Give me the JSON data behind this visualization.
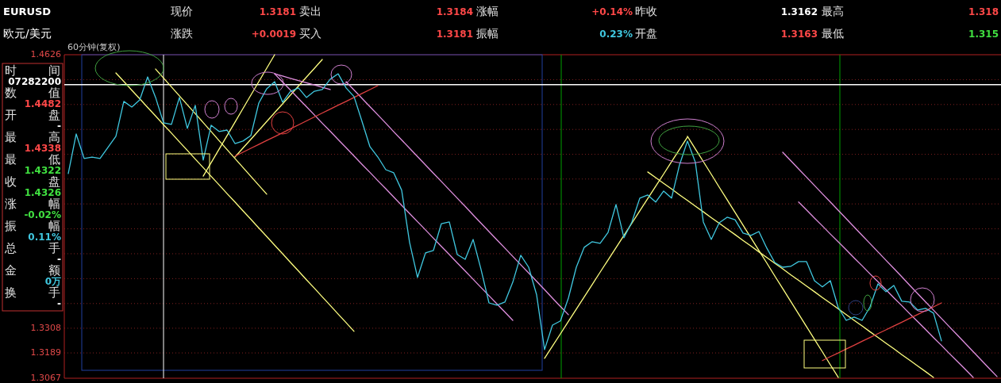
{
  "chart_data": [
    {
      "type": "line",
      "title": "60分钟(复权)",
      "ylim": [
        1.3067,
        1.4626
      ],
      "tick_labels": "y",
      "grid": "y",
      "yticks": [
        1.3067,
        1.3189,
        1.3308,
        {
          "value": 1.3427,
          "label": null
        },
        {
          "value": 1.3547,
          "label": null
        },
        {
          "value": 1.3667,
          "label": null
        },
        {
          "value": 1.3787,
          "label": null
        },
        {
          "value": 1.3907,
          "label": null
        },
        {
          "value": 1.4027,
          "label": null
        },
        {
          "value": 1.4146,
          "label": null
        },
        {
          "value": 1.4266,
          "label": null
        },
        {
          "value": 1.4386,
          "label": null
        },
        {
          "value": 1.4506,
          "label": null
        },
        1.4626
      ],
      "categories": [
        null,
        null,
        null,
        null,
        null,
        null,
        null,
        null,
        null,
        null,
        null,
        null,
        null,
        null,
        null,
        null,
        null,
        null,
        null,
        null,
        null,
        null,
        null,
        null,
        null,
        null,
        null,
        null,
        null,
        null,
        null,
        null,
        null,
        null,
        null,
        null,
        null,
        null,
        null,
        null,
        null,
        null,
        null,
        null,
        null,
        null,
        null,
        null,
        null,
        null,
        null,
        null,
        null,
        null,
        null,
        null,
        null,
        null,
        null,
        null,
        null,
        null,
        null,
        null,
        null,
        null,
        null,
        null,
        null,
        null,
        null,
        null,
        null,
        null,
        null,
        null,
        null,
        null,
        null,
        null,
        null,
        null,
        null,
        null,
        null,
        null,
        null,
        null,
        null,
        null,
        null,
        null,
        null,
        null,
        null,
        null,
        null,
        null,
        null,
        null,
        null,
        null,
        null,
        null,
        null,
        null,
        null,
        null,
        null,
        null,
        null,
        null,
        null,
        null,
        null,
        null,
        null,
        null
      ],
      "series": [
        {
          "color": "#40c8e0",
          "values": [
            1.4053,
            1.4244,
            1.4126,
            1.4133,
            1.4126,
            1.4179,
            1.4233,
            1.4401,
            1.4374,
            1.4408,
            1.4519,
            1.442,
            1.4298,
            1.429,
            1.442,
            1.4271,
            1.4382,
            1.4118,
            1.4286,
            1.4256,
            1.4263,
            1.4198,
            1.421,
            1.4236,
            1.4393,
            1.4462,
            1.4496,
            1.4397,
            1.445,
            1.4466,
            1.442,
            1.445,
            1.4458,
            1.4508,
            1.4534,
            1.4466,
            1.4424,
            1.4305,
            1.4183,
            1.4133,
            1.4072,
            1.4057,
            1.3973,
            1.3721,
            1.3553,
            1.3671,
            1.3683,
            1.3812,
            1.382,
            1.3663,
            1.364,
            1.3736,
            1.3591,
            1.343,
            1.3419,
            1.3434,
            1.353,
            1.366,
            1.3602,
            1.3469,
            1.3205,
            1.3323,
            1.3343,
            1.3453,
            1.3602,
            1.3698,
            1.3725,
            1.3717,
            1.377,
            1.3904,
            1.3744,
            1.382,
            1.3935,
            1.395,
            1.3916,
            1.3969,
            1.3935,
            1.4095,
            1.421,
            1.4107,
            1.382,
            1.3736,
            1.3816,
            1.3843,
            1.3831,
            1.3767,
            1.3755,
            1.3774,
            1.3694,
            1.3625,
            1.3602,
            1.3606,
            1.3629,
            1.3629,
            1.3537,
            1.3507,
            1.3537,
            1.3407,
            1.3346,
            1.3362,
            1.3346,
            1.3411,
            1.3522,
            1.3484,
            1.3514,
            1.3438,
            1.3434,
            1.3396,
            1.3404,
            1.3381,
            1.3247,
            null,
            null,
            null,
            null,
            null,
            null,
            null
          ]
        },
        {
          "type": "line",
          "color": "#ffff80",
          "values": [
            null,
            null,
            null,
            null,
            null,
            null,
            1.4538,
            1.4497,
            1.4455,
            1.4414,
            1.4372,
            1.4331,
            1.4289,
            1.4248,
            1.4206,
            1.4165,
            1.4123,
            1.4082,
            1.404,
            1.3999,
            1.3957,
            1.3916,
            1.3874,
            1.3833,
            1.3791,
            1.375,
            1.3708,
            1.3667,
            1.3625,
            1.3584,
            1.3542,
            1.3501,
            1.3459,
            1.3418,
            1.3376,
            1.3335,
            1.3293,
            null,
            null,
            null,
            null,
            null,
            null,
            null,
            null,
            null,
            null,
            null,
            null,
            null,
            null,
            null,
            null,
            null,
            null,
            null,
            null,
            null,
            null,
            null,
            null,
            null,
            null,
            null,
            null,
            null,
            null,
            null,
            null,
            null,
            null,
            null,
            null,
            null,
            null,
            null,
            null,
            null,
            null,
            null,
            null,
            null,
            null,
            null,
            null,
            null,
            null,
            null,
            null,
            null,
            null,
            null,
            null,
            null,
            null,
            null,
            null,
            null,
            null,
            null,
            null,
            null,
            null,
            null,
            null,
            null,
            null,
            null,
            null,
            null,
            null,
            null,
            null,
            null,
            null,
            null,
            null,
            null
          ]
        },
        {
          "type": "line",
          "color": "#ffff80",
          "values": [
            null,
            null,
            null,
            null,
            null,
            null,
            null,
            null,
            null,
            null,
            null,
            1.4557,
            1.4514,
            1.4471,
            1.4428,
            1.4385,
            1.4342,
            1.4299,
            1.4256,
            1.4212,
            1.4169,
            1.4126,
            1.4083,
            1.404,
            1.3997,
            1.3954,
            null,
            null,
            null,
            null,
            null,
            null,
            null,
            null,
            null,
            null,
            null,
            null,
            null,
            null,
            null,
            null,
            null,
            null,
            null,
            null,
            null,
            null,
            null,
            null,
            null,
            null,
            null,
            null,
            null,
            null,
            null,
            null,
            null,
            null,
            null,
            null,
            null,
            null,
            null,
            null,
            null,
            null,
            null,
            null,
            null,
            null,
            null,
            null,
            null,
            null,
            null,
            null,
            null,
            null,
            null,
            null,
            null,
            null,
            null,
            null,
            null,
            null,
            null,
            null,
            null,
            null,
            null,
            null,
            null,
            null,
            null,
            null,
            null,
            null,
            null,
            null,
            null,
            null,
            null,
            null,
            null,
            null,
            null,
            null,
            null,
            null,
            null,
            null,
            null,
            null,
            null,
            null
          ]
        },
        {
          "type": "line",
          "color": "#ffff80",
          "values": [
            null,
            null,
            null,
            null,
            null,
            null,
            null,
            null,
            null,
            null,
            null,
            null,
            null,
            null,
            null,
            null,
            null,
            1.4041,
            1.4106,
            1.4171,
            1.4236,
            1.4301,
            1.4366,
            1.4431,
            1.4496,
            1.4561,
            1.4626,
            null,
            null,
            null,
            null,
            null,
            null,
            null,
            null,
            null,
            null,
            null,
            null,
            null,
            null,
            null,
            null,
            null,
            null,
            null,
            null,
            null,
            null,
            null,
            null,
            null,
            null,
            null,
            null,
            null,
            null,
            null,
            null,
            null,
            null,
            null,
            null,
            null,
            null,
            null,
            null,
            null,
            null,
            null,
            null,
            null,
            null,
            null,
            null,
            null,
            null,
            null,
            null,
            null,
            null,
            null,
            null,
            null,
            null,
            null,
            null,
            null,
            null,
            null,
            null,
            null,
            null,
            null,
            null,
            null,
            null,
            null,
            null,
            null,
            null,
            null,
            null,
            null,
            null,
            null,
            null,
            null,
            null,
            null,
            null,
            null,
            null,
            null,
            null,
            null,
            null,
            null
          ]
        },
        {
          "type": "line",
          "color": "#ffff80",
          "values": [
            null,
            null,
            null,
            null,
            null,
            null,
            null,
            null,
            null,
            null,
            null,
            null,
            null,
            null,
            null,
            null,
            null,
            null,
            null,
            null,
            null,
            1.4133,
            1.4176,
            1.4218,
            1.4261,
            1.4304,
            1.4347,
            1.4389,
            1.4432,
            1.4475,
            1.4518,
            1.456,
            1.4603,
            null,
            null,
            null,
            null,
            null,
            null,
            null,
            null,
            null,
            null,
            null,
            null,
            null,
            null,
            null,
            null,
            null,
            null,
            null,
            null,
            null,
            null,
            null,
            null,
            null,
            null,
            null,
            null,
            null,
            null,
            null,
            null,
            null,
            null,
            null,
            null,
            null,
            null,
            null,
            null,
            null,
            null,
            null,
            null,
            null,
            null,
            null,
            null,
            null,
            null,
            null,
            null,
            null,
            null,
            null,
            null,
            null,
            null,
            null,
            null,
            null,
            null,
            null,
            null,
            null,
            null,
            null,
            null,
            null,
            null,
            null,
            null,
            null,
            null,
            null,
            null,
            null,
            null,
            null,
            null,
            null,
            null,
            null,
            null,
            null
          ]
        },
        {
          "type": "line",
          "color": "#ffff80",
          "values": [
            null,
            null,
            null,
            null,
            null,
            null,
            null,
            null,
            null,
            null,
            null,
            null,
            null,
            null,
            null,
            null,
            null,
            null,
            null,
            null,
            null,
            null,
            null,
            null,
            null,
            null,
            null,
            null,
            null,
            null,
            null,
            null,
            null,
            null,
            null,
            null,
            null,
            null,
            null,
            null,
            null,
            null,
            null,
            null,
            null,
            null,
            null,
            null,
            null,
            null,
            null,
            null,
            null,
            null,
            null,
            null,
            null,
            null,
            null,
            null,
            1.3163,
            1.3222,
            1.3281,
            1.3341,
            1.34,
            1.3459,
            1.3518,
            1.3578,
            1.3637,
            1.3696,
            1.3755,
            1.3814,
            1.3874,
            1.3933,
            1.3992,
            1.4051,
            1.4111,
            1.417,
            1.4229,
            null,
            null,
            null,
            null,
            null,
            null,
            null,
            null,
            null,
            null,
            null,
            null,
            null,
            null,
            null,
            null,
            null,
            null,
            null,
            null,
            null,
            null,
            null,
            null,
            null,
            null,
            null,
            null,
            null,
            null,
            null,
            null,
            null,
            null,
            null,
            null,
            null,
            null,
            null
          ]
        },
        {
          "type": "line",
          "color": "#ffff80",
          "values": [
            null,
            null,
            null,
            null,
            null,
            null,
            null,
            null,
            null,
            null,
            null,
            null,
            null,
            null,
            null,
            null,
            null,
            null,
            null,
            null,
            null,
            null,
            null,
            null,
            null,
            null,
            null,
            null,
            null,
            null,
            null,
            null,
            null,
            null,
            null,
            null,
            null,
            null,
            null,
            null,
            null,
            null,
            null,
            null,
            null,
            null,
            null,
            null,
            null,
            null,
            null,
            null,
            null,
            null,
            null,
            null,
            null,
            null,
            null,
            null,
            null,
            null,
            null,
            null,
            null,
            null,
            null,
            null,
            null,
            null,
            null,
            null,
            null,
            null,
            null,
            null,
            null,
            null,
            1.4233,
            1.4172,
            1.4111,
            1.405,
            1.3988,
            1.3927,
            1.3866,
            1.3805,
            1.3744,
            1.3683,
            1.3622,
            1.356,
            1.3499,
            1.3438,
            1.3377,
            1.3316,
            1.3255,
            1.3194,
            1.3132,
            1.3071,
            null,
            null,
            null,
            null,
            null,
            null,
            null,
            null,
            null,
            null,
            null,
            null,
            null,
            null,
            null,
            null,
            null,
            null,
            null,
            null
          ]
        },
        {
          "type": "line",
          "color": "#ffff80",
          "values": [
            null,
            null,
            null,
            null,
            null,
            null,
            null,
            null,
            null,
            null,
            null,
            null,
            null,
            null,
            null,
            null,
            null,
            null,
            null,
            null,
            null,
            null,
            null,
            null,
            null,
            null,
            null,
            null,
            null,
            null,
            null,
            null,
            null,
            null,
            null,
            null,
            null,
            null,
            null,
            null,
            null,
            null,
            null,
            null,
            null,
            null,
            null,
            null,
            null,
            null,
            null,
            null,
            null,
            null,
            null,
            null,
            null,
            null,
            null,
            null,
            null,
            null,
            null,
            null,
            null,
            null,
            null,
            null,
            null,
            null,
            null,
            null,
            null,
            1.4061,
            1.4034,
            1.4006,
            1.3979,
            1.3951,
            1.3924,
            1.3896,
            1.3869,
            1.3841,
            1.3814,
            1.3786,
            1.3759,
            1.3731,
            1.3704,
            1.3676,
            1.3649,
            1.3621,
            1.3594,
            1.3566,
            1.3539,
            1.3511,
            1.3484,
            1.3456,
            1.3429,
            1.3401,
            1.3374,
            1.3346,
            1.3319,
            1.3291,
            1.3264,
            1.3236,
            1.3209,
            1.3181,
            1.3154,
            1.3126,
            1.3099,
            1.3071,
            null,
            null,
            null,
            null,
            null,
            null,
            null,
            null
          ]
        },
        {
          "type": "line",
          "color": "#e090e0",
          "values": [
            null,
            null,
            null,
            null,
            null,
            null,
            null,
            null,
            null,
            null,
            null,
            null,
            null,
            null,
            null,
            null,
            null,
            null,
            null,
            null,
            null,
            null,
            null,
            null,
            null,
            null,
            1.4534,
            1.4523,
            1.4512,
            1.4501,
            1.4491,
            1.448,
            1.4469,
            1.4458,
            null,
            null,
            null,
            null,
            null,
            null,
            null,
            null,
            null,
            null,
            null,
            null,
            null,
            null,
            null,
            null,
            null,
            null,
            null,
            null,
            null,
            null,
            null,
            null,
            null,
            null,
            null,
            null,
            null,
            null,
            null,
            null,
            null,
            null,
            null,
            null,
            null,
            null,
            null,
            null,
            null,
            null,
            null,
            null,
            null,
            null,
            null,
            null,
            null,
            null,
            null,
            null,
            null,
            null,
            null,
            null,
            null,
            null,
            null,
            null,
            null,
            null,
            null,
            null,
            null,
            null,
            null,
            null,
            null,
            null,
            null,
            null,
            null,
            null,
            null,
            null,
            null,
            null,
            null,
            null,
            null,
            null,
            null,
            null
          ]
        },
        {
          "type": "line",
          "color": "#e090e0",
          "values": [
            null,
            null,
            null,
            null,
            null,
            null,
            null,
            null,
            null,
            null,
            null,
            null,
            null,
            null,
            null,
            null,
            null,
            null,
            null,
            null,
            null,
            null,
            null,
            null,
            null,
            null,
            1.4534,
            1.4494,
            1.4455,
            1.4415,
            1.4376,
            1.4336,
            1.4296,
            1.4257,
            1.4217,
            1.4178,
            1.4138,
            1.4098,
            1.4059,
            1.4019,
            1.398,
            1.394,
            1.39,
            1.3861,
            1.3821,
            1.3782,
            1.3742,
            1.3702,
            1.3663,
            1.3623,
            1.3584,
            1.3544,
            1.3504,
            1.3465,
            1.3425,
            1.3386,
            1.3346,
            null,
            null,
            null,
            null,
            null,
            null,
            null,
            null,
            null,
            null,
            null,
            null,
            null,
            null,
            null,
            null,
            null,
            null,
            null,
            null,
            null,
            null,
            null,
            null,
            null,
            null,
            null,
            null,
            null,
            null,
            null,
            null,
            null,
            null,
            null,
            null,
            null,
            null,
            null,
            null,
            null,
            null,
            null,
            null,
            null,
            null,
            null,
            null,
            null,
            null,
            null,
            null,
            null,
            null,
            null,
            null,
            null,
            null,
            null,
            null,
            null
          ]
        },
        {
          "type": "line",
          "color": "#e090e0",
          "values": [
            null,
            null,
            null,
            null,
            null,
            null,
            null,
            null,
            null,
            null,
            null,
            null,
            null,
            null,
            null,
            null,
            null,
            null,
            null,
            null,
            null,
            null,
            null,
            null,
            null,
            null,
            null,
            null,
            null,
            null,
            null,
            null,
            null,
            null,
            null,
            1.4496,
            1.4456,
            1.4416,
            1.4376,
            1.4336,
            1.4296,
            1.4255,
            1.4215,
            1.4175,
            1.4135,
            1.4095,
            1.4055,
            1.4015,
            1.3975,
            1.3935,
            1.3895,
            1.3854,
            1.3814,
            1.3774,
            1.3734,
            1.3694,
            1.3654,
            1.3614,
            1.3574,
            1.3534,
            1.3494,
            1.3453,
            1.3413,
            1.3373,
            null,
            null,
            null,
            null,
            null,
            null,
            null,
            null,
            null,
            null,
            null,
            null,
            null,
            null,
            null,
            null,
            null,
            null,
            null,
            null,
            null,
            null,
            null,
            null,
            null,
            null,
            null,
            null,
            null,
            null,
            null,
            null,
            null,
            null,
            null,
            null,
            null,
            null,
            null,
            null,
            null,
            null,
            null,
            null,
            null,
            null,
            null,
            null,
            null,
            null,
            null,
            null,
            null,
            null
          ]
        },
        {
          "type": "line",
          "color": "#e090e0",
          "values": [
            null,
            null,
            null,
            null,
            null,
            null,
            null,
            null,
            null,
            null,
            null,
            null,
            null,
            null,
            null,
            null,
            null,
            null,
            null,
            null,
            null,
            null,
            null,
            null,
            null,
            null,
            null,
            null,
            null,
            null,
            null,
            null,
            null,
            null,
            null,
            null,
            null,
            null,
            null,
            null,
            null,
            null,
            null,
            null,
            null,
            null,
            null,
            null,
            null,
            null,
            null,
            null,
            null,
            null,
            null,
            null,
            null,
            null,
            null,
            null,
            null,
            null,
            null,
            null,
            null,
            null,
            null,
            null,
            null,
            null,
            null,
            null,
            null,
            null,
            null,
            null,
            null,
            null,
            null,
            null,
            null,
            null,
            null,
            null,
            null,
            null,
            null,
            null,
            null,
            null,
            1.4156,
            1.4116,
            1.4076,
            1.4036,
            1.3996,
            1.3956,
            1.3916,
            1.3876,
            1.3836,
            1.3796,
            1.3756,
            1.3716,
            1.3676,
            1.3636,
            1.3596,
            1.3556,
            1.3515,
            1.3475,
            1.3435,
            1.3395,
            1.3355,
            1.3315,
            1.3275,
            1.3235,
            1.3195,
            1.3155,
            1.3115,
            1.3075
          ]
        },
        {
          "type": "line",
          "color": "#e090e0",
          "values": [
            null,
            null,
            null,
            null,
            null,
            null,
            null,
            null,
            null,
            null,
            null,
            null,
            null,
            null,
            null,
            null,
            null,
            null,
            null,
            null,
            null,
            null,
            null,
            null,
            null,
            null,
            null,
            null,
            null,
            null,
            null,
            null,
            null,
            null,
            null,
            null,
            null,
            null,
            null,
            null,
            null,
            null,
            null,
            null,
            null,
            null,
            null,
            null,
            null,
            null,
            null,
            null,
            null,
            null,
            null,
            null,
            null,
            null,
            null,
            null,
            null,
            null,
            null,
            null,
            null,
            null,
            null,
            null,
            null,
            null,
            null,
            null,
            null,
            null,
            null,
            null,
            null,
            null,
            null,
            null,
            null,
            null,
            null,
            null,
            null,
            null,
            null,
            null,
            null,
            null,
            null,
            null,
            1.3916,
            1.3878,
            1.3839,
            1.3801,
            1.3762,
            1.3724,
            1.3686,
            1.3647,
            1.3609,
            1.357,
            1.3532,
            1.3494,
            1.3455,
            1.3417,
            1.3378,
            1.334,
            1.3302,
            1.3263,
            1.3225,
            1.3186,
            1.3148,
            1.311,
            1.3071,
            null,
            null,
            null
          ]
        },
        {
          "type": "line",
          "color": "#e04040",
          "values": [
            null,
            null,
            null,
            null,
            null,
            null,
            null,
            null,
            null,
            null,
            null,
            null,
            null,
            null,
            null,
            null,
            null,
            null,
            null,
            null,
            null,
            1.4137,
            1.4156,
            1.4175,
            1.4194,
            1.4213,
            1.4231,
            1.425,
            1.4269,
            1.4288,
            1.4307,
            1.4326,
            1.4345,
            1.4364,
            1.4383,
            1.4401,
            1.442,
            1.4439,
            1.4458,
            1.4477,
            null,
            null,
            null,
            null,
            null,
            null,
            null,
            null,
            null,
            null,
            null,
            null,
            null,
            null,
            null,
            null,
            null,
            null,
            null,
            null,
            null,
            null,
            null,
            null,
            null,
            null,
            null,
            null,
            null,
            null,
            null,
            null,
            null,
            null,
            null,
            null,
            null,
            null,
            null,
            null,
            null,
            null,
            null,
            null,
            null,
            null,
            null,
            null,
            null,
            null,
            null,
            null,
            null,
            null,
            null,
            null,
            null,
            null,
            null,
            null,
            null,
            null,
            null,
            null,
            null,
            null,
            null,
            null,
            null,
            null,
            null,
            null,
            null,
            null,
            null,
            null,
            null,
            null
          ]
        },
        {
          "type": "line",
          "color": "#e04040",
          "values": [
            null,
            null,
            null,
            null,
            null,
            null,
            null,
            null,
            null,
            null,
            null,
            null,
            null,
            null,
            null,
            null,
            null,
            null,
            null,
            null,
            null,
            null,
            null,
            null,
            null,
            null,
            null,
            null,
            null,
            null,
            null,
            null,
            null,
            null,
            null,
            null,
            null,
            null,
            null,
            null,
            null,
            null,
            null,
            null,
            null,
            null,
            null,
            null,
            null,
            null,
            null,
            null,
            null,
            null,
            null,
            null,
            null,
            null,
            null,
            null,
            null,
            null,
            null,
            null,
            null,
            null,
            null,
            null,
            null,
            null,
            null,
            null,
            null,
            null,
            null,
            null,
            null,
            null,
            null,
            null,
            null,
            null,
            null,
            null,
            null,
            null,
            null,
            null,
            null,
            null,
            null,
            null,
            null,
            null,
            null,
            1.3152,
            1.3171,
            1.3189,
            1.3208,
            1.3226,
            1.3245,
            1.3263,
            1.3282,
            1.33,
            1.3319,
            1.3337,
            1.3356,
            1.3374,
            1.3393,
            1.3411,
            1.343,
            null,
            null,
            null,
            null,
            null,
            null,
            null
          ]
        }
      ],
      "ref_lines": [
        {
          "axis": "y",
          "value": 1.4482,
          "color": "#ffffff"
        }
      ]
    },
    {
      "type": "other",
      "title": "EURUSD",
      "subtitle": "欧元/美元",
      "annotations": [
        "现价",
        "1.3181",
        "卖出",
        "1.3184",
        "涨幅",
        "+0.14%",
        "昨收",
        "1.3162",
        "最高",
        "1.318",
        "涨跌",
        "+0.0019",
        "买入",
        "1.3181",
        "振幅",
        "0.23%",
        "开盘",
        "1.3163",
        "最低",
        "1.315"
      ]
    },
    {
      "type": "other",
      "annotations": [
        "时间",
        "07282200",
        "数值",
        "1.4482",
        "开盘",
        "-",
        "最高",
        "1.4338",
        "最低",
        "1.4322",
        "收盘",
        "1.4326",
        "涨幅",
        "-0.02%",
        "振幅",
        "0.11%",
        "总手",
        "-",
        "金额",
        "0万",
        "换手",
        "-"
      ]
    }
  ]
}
